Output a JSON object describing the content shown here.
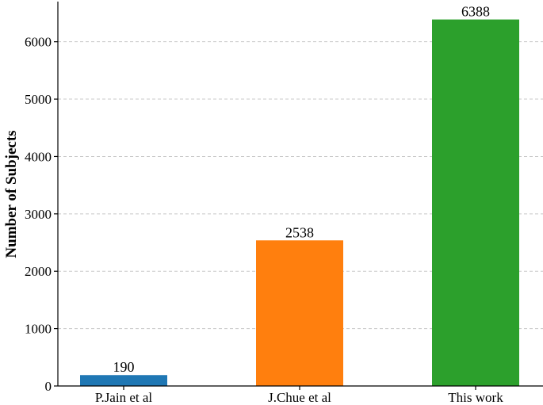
{
  "chart_data": {
    "type": "bar",
    "categories": [
      "P.Jain et al",
      "J.Chue et al",
      "This work"
    ],
    "values": [
      190,
      2538,
      6388
    ],
    "colors": [
      "#1f77b4",
      "#ff7f0e",
      "#2ca02c"
    ],
    "title": "",
    "xlabel": "",
    "ylabel": "Number of Subjects",
    "ylim": [
      0,
      6700
    ],
    "yticks": [
      0,
      1000,
      2000,
      3000,
      4000,
      5000,
      6000
    ],
    "grid": "y-dashed",
    "data_labels": true
  }
}
